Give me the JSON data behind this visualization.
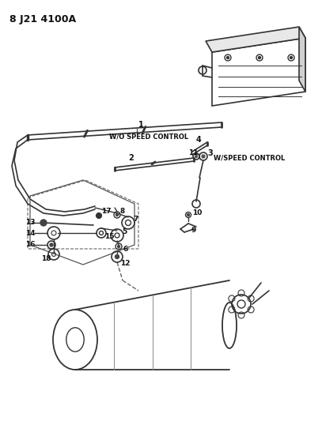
{
  "title": "8 J21 4100A",
  "bg_color": "#ffffff",
  "line_color": "#333333",
  "text_color": "#111111",
  "figsize": [
    4.07,
    5.33
  ],
  "dpi": 100,
  "labels": {
    "wo_speed": "W/O SPEED CONTROL",
    "w_speed": "W/SPEED CONTROL",
    "part_id": "8 J21 4100A"
  }
}
